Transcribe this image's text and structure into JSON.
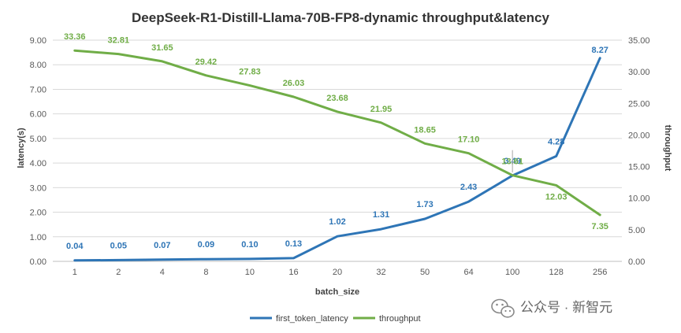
{
  "chart_data": {
    "type": "line",
    "title": "DeepSeek-R1-Distill-Llama-70B-FP8-dynamic throughput&latency",
    "xlabel": "batch_size",
    "ylabel_left": "latency(s)",
    "ylabel_right": "throughput",
    "categories": [
      "1",
      "2",
      "4",
      "8",
      "10",
      "16",
      "20",
      "32",
      "50",
      "64",
      "100",
      "128",
      "256"
    ],
    "ylim_left": [
      0,
      9
    ],
    "ylim_right": [
      0,
      35
    ],
    "yticks_left": [
      "0.00",
      "1.00",
      "2.00",
      "3.00",
      "4.00",
      "5.00",
      "6.00",
      "7.00",
      "8.00",
      "9.00"
    ],
    "yticks_right": [
      "0.00",
      "5.00",
      "10.00",
      "15.00",
      "20.00",
      "25.00",
      "30.00",
      "35.00"
    ],
    "grid": true,
    "legend_position": "bottom",
    "series": [
      {
        "name": "first_token_latency",
        "axis": "left",
        "color": "#2e75b6",
        "values": [
          0.04,
          0.05,
          0.07,
          0.09,
          0.1,
          0.13,
          1.02,
          1.31,
          1.73,
          2.43,
          3.49,
          4.28,
          8.27
        ],
        "labels": [
          "0.04",
          "0.05",
          "0.07",
          "0.09",
          "0.10",
          "0.13",
          "1.02",
          "1.31",
          "1.73",
          "2.43",
          "3.49",
          "4.28",
          "8.27"
        ]
      },
      {
        "name": "throughput",
        "axis": "right",
        "color": "#70ad47",
        "values": [
          33.36,
          32.81,
          31.65,
          29.42,
          27.83,
          26.03,
          23.68,
          21.95,
          18.65,
          17.1,
          13.61,
          12.03,
          7.35
        ],
        "labels": [
          "33.36",
          "32.81",
          "31.65",
          "29.42",
          "27.83",
          "26.03",
          "23.68",
          "21.95",
          "18.65",
          "17.10",
          "13.61",
          "12.03",
          "7.35"
        ]
      }
    ]
  },
  "watermark": {
    "text": "公众号 · 新智元",
    "icon": "wechat-icon"
  }
}
